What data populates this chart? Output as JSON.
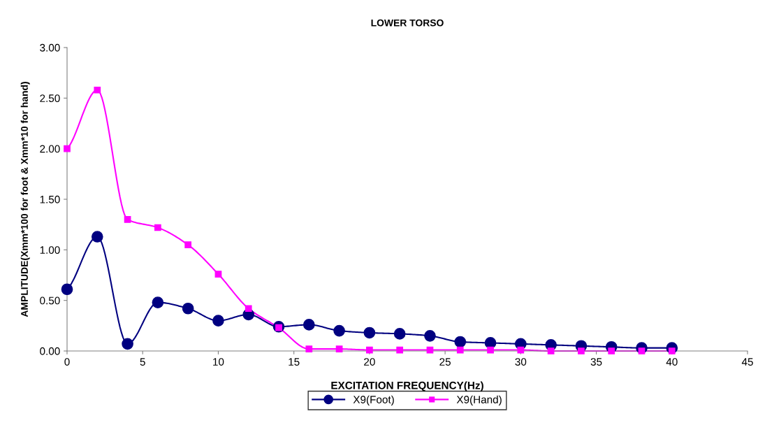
{
  "chart_data": {
    "type": "line",
    "title": "LOWER TORSO",
    "xlabel": "EXCITATION FREQUENCY(Hz)",
    "ylabel": "AMPLITUDE(Xmm*100 for foot & Xmm*10 for hand)",
    "x": [
      0,
      2,
      4,
      6,
      8,
      10,
      12,
      14,
      16,
      18,
      20,
      22,
      24,
      26,
      28,
      30,
      32,
      34,
      36,
      38,
      40
    ],
    "series": [
      {
        "name": "X9(Foot)",
        "color": "#000080",
        "marker": "circle",
        "values": [
          0.61,
          1.13,
          0.07,
          0.48,
          0.42,
          0.3,
          0.36,
          0.24,
          0.26,
          0.2,
          0.18,
          0.17,
          0.15,
          0.09,
          0.08,
          0.07,
          0.06,
          0.05,
          0.04,
          0.03,
          0.03
        ]
      },
      {
        "name": "X9(Hand)",
        "color": "#ff00ff",
        "marker": "square",
        "values": [
          2.0,
          2.58,
          1.3,
          1.22,
          1.05,
          0.76,
          0.42,
          0.23,
          0.02,
          0.02,
          0.01,
          0.01,
          0.01,
          0.01,
          0.01,
          0.01,
          0.0,
          0.0,
          0.0,
          0.0,
          0.0
        ]
      }
    ],
    "xlim": [
      0,
      45
    ],
    "xticks": [
      0,
      5,
      10,
      15,
      20,
      25,
      30,
      35,
      40,
      45
    ],
    "ylim": [
      0,
      3
    ],
    "yticks": [
      {
        "value": 0,
        "label": "0.00"
      },
      {
        "value": 0.5,
        "label": "0.50"
      },
      {
        "value": 1,
        "label": "1.00"
      },
      {
        "value": 1.5,
        "label": "1.50"
      },
      {
        "value": 2,
        "label": "2.00"
      },
      {
        "value": 2.5,
        "label": "2.50"
      },
      {
        "value": 3,
        "label": "3.00"
      }
    ],
    "grid": false,
    "legend": "bottom",
    "line_style": "solid"
  }
}
